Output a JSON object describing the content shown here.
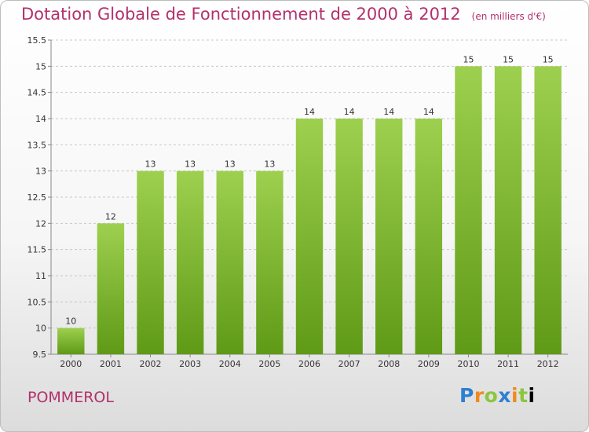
{
  "header": {
    "title": "Dotation Globale de Fonctionnement de 2000 à 2012",
    "unit": "(en milliers d'€)"
  },
  "footer": {
    "town": "POMMEROL",
    "logo": "Proxiti"
  },
  "colors": {
    "title": "#b3306b",
    "bar_light": "#9dd04e",
    "bar_dark": "#5f9a17",
    "grid": "#c8c8c8"
  },
  "chart_data": {
    "type": "bar",
    "categories": [
      "2000",
      "2001",
      "2002",
      "2003",
      "2004",
      "2005",
      "2006",
      "2007",
      "2008",
      "2009",
      "2010",
      "2011",
      "2012"
    ],
    "values": [
      10,
      12,
      13,
      13,
      13,
      13,
      14,
      14,
      14,
      14,
      15,
      15,
      15
    ],
    "data_labels": [
      "10",
      "12",
      "13",
      "13",
      "13",
      "13",
      "14",
      "14",
      "14",
      "14",
      "15",
      "15",
      "15"
    ],
    "yticks": [
      9.5,
      10,
      10.5,
      11,
      11.5,
      12,
      12.5,
      13,
      13.5,
      14,
      14.5,
      15,
      15.5
    ],
    "ylim": [
      9.5,
      15.5
    ],
    "grid": true,
    "legend": "none"
  }
}
